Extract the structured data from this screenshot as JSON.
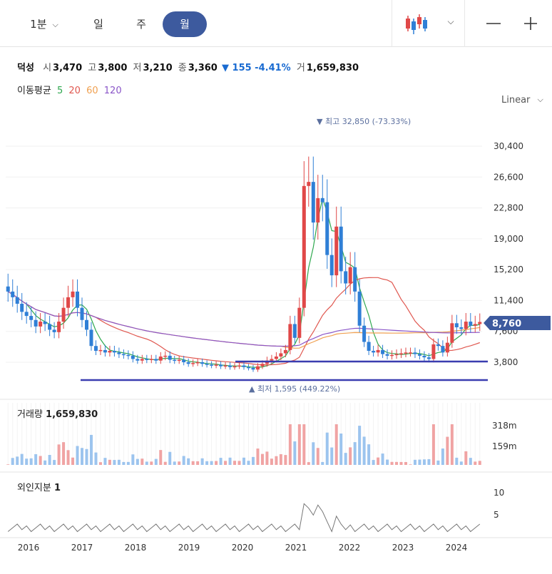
{
  "toolbar": {
    "minute_label": "1분",
    "day_label": "일",
    "week_label": "주",
    "month_label": "월",
    "active_period": "월"
  },
  "stock": {
    "name": "덕성",
    "open_label": "시",
    "open": "3,470",
    "high_label": "고",
    "high": "3,800",
    "low_label": "저",
    "low": "3,210",
    "close_label": "종",
    "close": "3,360",
    "change": "▼ 155 -4.41%",
    "volume_label": "거",
    "volume": "1,659,830"
  },
  "moving_average": {
    "label": "이동평균",
    "periods": [
      {
        "period": "5",
        "color": "#2fa84f"
      },
      {
        "period": "20",
        "color": "#e0574f"
      },
      {
        "period": "60",
        "color": "#f0a050"
      },
      {
        "period": "120",
        "color": "#8a55c8"
      }
    ]
  },
  "scale_label": "Linear",
  "colors": {
    "up": "#e04848",
    "down": "#2f7fd6",
    "accent": "#3d5a9e",
    "line": "#3a3db0"
  },
  "annotations": {
    "high": "▼ 최고 32,850 (-73.33%)",
    "low": "▲ 최저 1,595 (449.22%)",
    "current_price": "8,760"
  },
  "volume_panel": {
    "label": "거래량",
    "value": "1,659,830",
    "ticks": [
      "318m",
      "159m"
    ]
  },
  "foreign_panel": {
    "label": "외인지분",
    "value": "1",
    "ticks": [
      "10",
      "5"
    ]
  },
  "chart_data": {
    "type": "candlestick",
    "interval": "monthly",
    "x_ticks": [
      "2016",
      "2017",
      "2018",
      "2019",
      "2020",
      "2021",
      "2022",
      "2023",
      "2024"
    ],
    "y_ticks": [
      "30,400",
      "26,600",
      "22,800",
      "19,000",
      "15,200",
      "11,400",
      "7,600",
      "3,800"
    ],
    "ylim": [
      0,
      33000
    ],
    "support_lines": [
      4700,
      2700
    ],
    "close_series": [
      12500,
      11800,
      11000,
      10000,
      9500,
      9000,
      8200,
      8800,
      8500,
      7800,
      7500,
      8800,
      10500,
      11800,
      12500,
      10500,
      9000,
      7800,
      5800,
      5200,
      5300,
      5000,
      5200,
      5000,
      4800,
      4700,
      4600,
      4200,
      4000,
      4200,
      4100,
      4200,
      4000,
      4500,
      4600,
      4100,
      4000,
      4100,
      3800,
      3600,
      3700,
      3800,
      3600,
      3500,
      3400,
      3500,
      3300,
      3400,
      3200,
      3300,
      3400,
      3200,
      3100,
      2900,
      3300,
      3600,
      4000,
      4200,
      4500,
      4900,
      5300,
      8500,
      6800,
      10500,
      25500,
      26000,
      21000,
      24000,
      23500,
      17000,
      14500,
      20500,
      15000,
      13500,
      15500,
      12500,
      8300,
      6300,
      5200,
      5000,
      5300,
      4800,
      4600,
      4700,
      4800,
      4900,
      5000,
      5000,
      4800,
      4600,
      4400,
      4200,
      6000,
      5800,
      5000,
      6200,
      8600,
      8100,
      7900,
      8800,
      8300,
      8500,
      8760
    ],
    "moving_averages": {
      "5": "green line",
      "20": "red line",
      "60": "orange line",
      "120": "purple line"
    },
    "volume_ticks": [
      "318m",
      "159m"
    ],
    "foreign_ownership_ticks": [
      "10",
      "5"
    ]
  }
}
